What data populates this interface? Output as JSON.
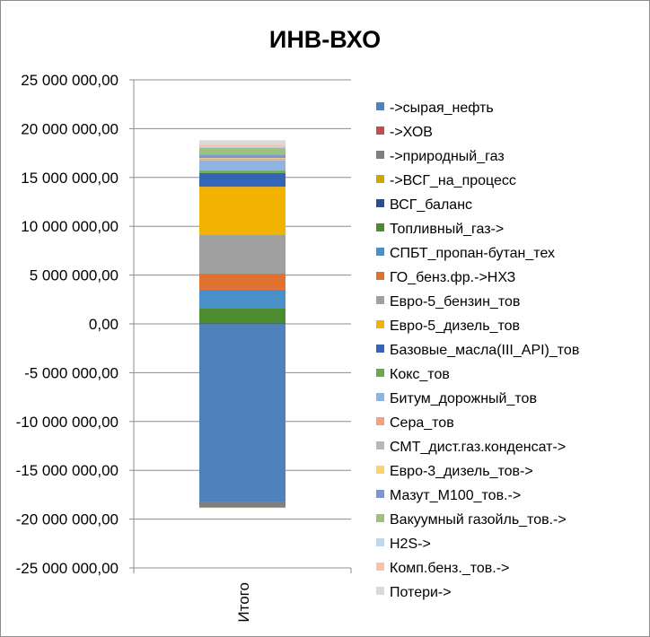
{
  "chart_data": {
    "type": "bar",
    "stacked": true,
    "title": "ИНВ-ВХО",
    "xlabel": "",
    "ylabel": "",
    "categories": [
      "Итого"
    ],
    "ylim": [
      -25000000,
      25000000
    ],
    "ytick_step": 5000000,
    "yticks": [
      "25 000 000,00",
      "20 000 000,00",
      "15 000 000,00",
      "10 000 000,00",
      "5 000 000,00",
      "0,00",
      "-5 000 000,00",
      "-10 000 000,00",
      "-15 000 000,00",
      "-20 000 000,00",
      "-25 000 000,00"
    ],
    "grid": true,
    "legend_position": "right",
    "series": [
      {
        "name": "->сырая_нефть",
        "color": "#4f81bd",
        "values": [
          -18200000
        ]
      },
      {
        "name": "->ХОВ",
        "color": "#c0504d",
        "values": [
          -50000
        ]
      },
      {
        "name": "->природный_газ",
        "color": "#7f7f7f",
        "values": [
          -500000
        ]
      },
      {
        "name": "->ВСГ_на_процесс",
        "color": "#c9a800",
        "values": [
          -100000
        ]
      },
      {
        "name": "ВСГ_баланс",
        "color": "#2e4d8f",
        "values": [
          50000
        ]
      },
      {
        "name": "Топливный_газ->",
        "color": "#4e8a2f",
        "values": [
          1550000
        ]
      },
      {
        "name": "СПБТ_пропан-бутан_тех",
        "color": "#4a90c8",
        "values": [
          1900000
        ]
      },
      {
        "name": "ГО_бенз.фр.->НХЗ",
        "color": "#e07130",
        "values": [
          1650000
        ]
      },
      {
        "name": "Евро-5_бензин_тов",
        "color": "#a0a0a0",
        "values": [
          3950000
        ]
      },
      {
        "name": "Евро-5_дизель_тов",
        "color": "#f2b200",
        "values": [
          4950000
        ]
      },
      {
        "name": "Базовые_масла(III_API)_тов",
        "color": "#3465b8",
        "values": [
          1400000
        ]
      },
      {
        "name": "Кокс_тов",
        "color": "#6aa84f",
        "values": [
          250000
        ]
      },
      {
        "name": "Битум_дорожный_тов",
        "color": "#8db4e2",
        "values": [
          1050000
        ]
      },
      {
        "name": "Сера_тов",
        "color": "#f4a27e",
        "values": [
          50000
        ]
      },
      {
        "name": "СМТ_дист.газ.конденсат->",
        "color": "#b8b8b8",
        "values": [
          150000
        ]
      },
      {
        "name": "Евро-3_дизель_тов->",
        "color": "#ffd36b",
        "values": [
          50000
        ]
      },
      {
        "name": "Мазут_М100_тов.->",
        "color": "#7f95cf",
        "values": [
          350000
        ]
      },
      {
        "name": "Вакуумный газойль_тов.->",
        "color": "#9bc27a",
        "values": [
          700000
        ]
      },
      {
        "name": "H2S->",
        "color": "#bdd7ee",
        "values": [
          60000
        ]
      },
      {
        "name": "Комп.бенз._тов.->",
        "color": "#f8c2ad",
        "values": [
          250000
        ]
      },
      {
        "name": "Потери->",
        "color": "#d9d9d9",
        "values": [
          450000
        ]
      }
    ]
  }
}
